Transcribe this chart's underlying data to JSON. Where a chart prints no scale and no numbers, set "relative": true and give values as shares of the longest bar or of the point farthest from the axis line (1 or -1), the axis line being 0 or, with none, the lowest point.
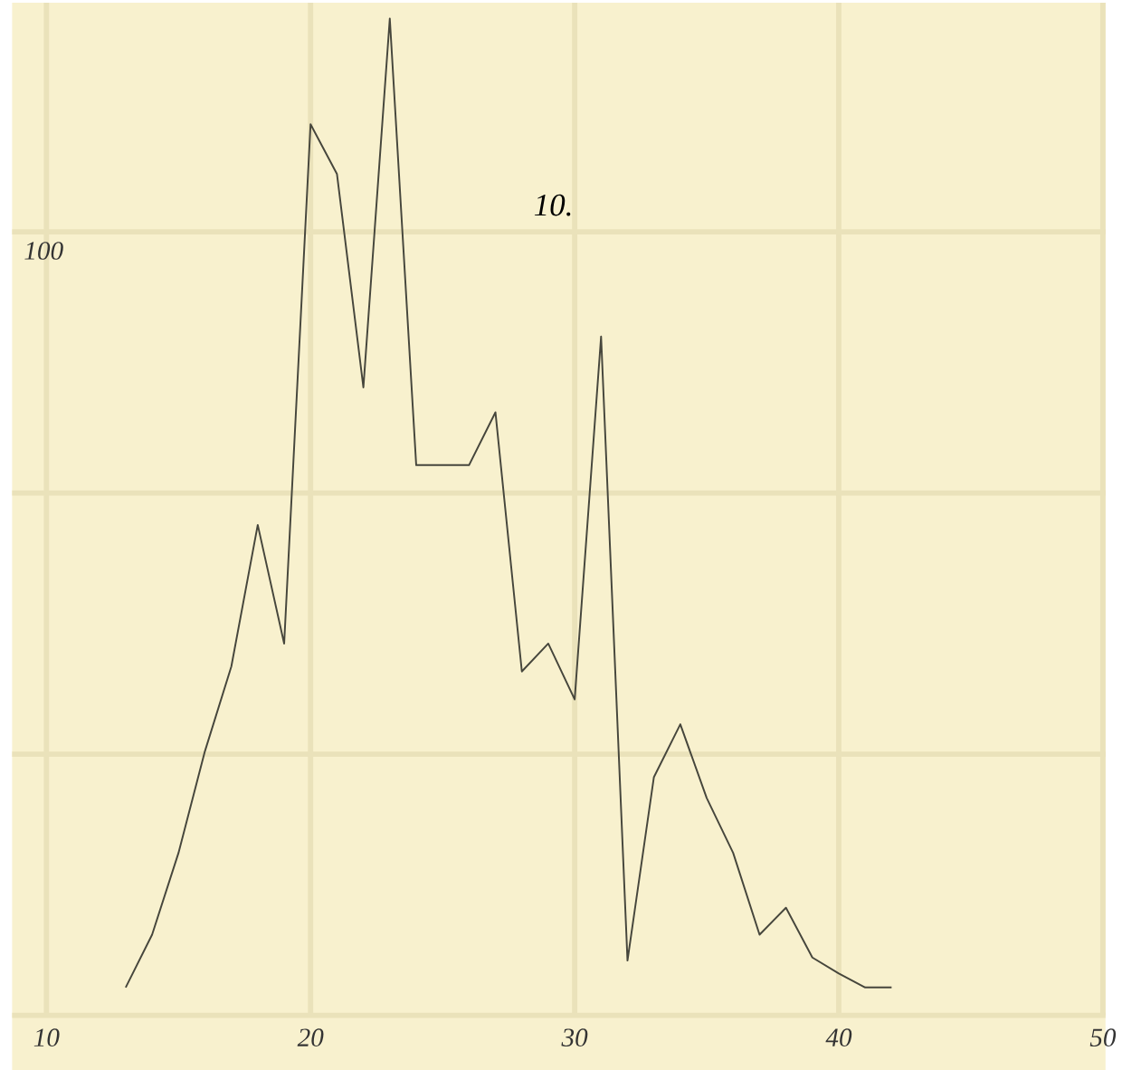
{
  "chart_data": {
    "type": "line",
    "title": "10.",
    "relative": true,
    "grid": true,
    "color": "#46463c",
    "x": [
      13,
      14,
      15,
      16,
      17,
      18,
      19,
      20,
      21,
      22,
      23,
      24,
      25,
      26,
      27,
      28,
      29,
      30,
      31,
      32,
      33,
      34,
      35,
      36,
      37,
      38,
      39,
      40,
      41,
      42
    ],
    "values": [
      0.028,
      0.081,
      0.163,
      0.265,
      0.35,
      0.492,
      0.373,
      0.894,
      0.844,
      0.63,
      1,
      0.552,
      0.552,
      0.552,
      0.605,
      0.345,
      0.373,
      0.317,
      0.681,
      0.055,
      0.239,
      0.292,
      0.218,
      0.163,
      0.081,
      0.108,
      0.058,
      0.042,
      0.028,
      0.028
    ],
    "xlim": [
      8.7,
      50.1
    ],
    "xticks": [
      10,
      20,
      30,
      40,
      50
    ],
    "annotations": [
      "100"
    ]
  }
}
